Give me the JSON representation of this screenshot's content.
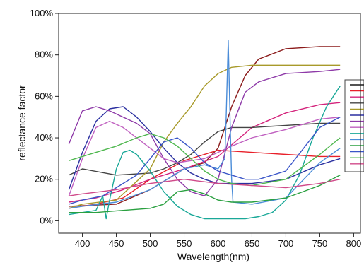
{
  "chart_data": {
    "type": "line",
    "title": "",
    "xlabel": "Wavelength(nm)",
    "ylabel": "reflectance factor",
    "xlim": [
      365,
      810
    ],
    "ylim": [
      -0.06,
      1.0
    ],
    "x_ticks": [
      400,
      450,
      500,
      550,
      600,
      650,
      700,
      750,
      800
    ],
    "x_tick_labels": [
      "400",
      "450",
      "500",
      "550",
      "600",
      "650",
      "700",
      "750",
      "800"
    ],
    "y_ticks": [
      0,
      0.2,
      0.4,
      0.6,
      0.8,
      1.0
    ],
    "y_tick_labels": [
      "0%",
      "20%",
      "40%",
      "60%",
      "80%",
      "100%"
    ],
    "grid": false,
    "legend_position": "right, partially cut off",
    "series": [
      {
        "color": "#8b1a1a",
        "x": [
          380,
          450,
          500,
          550,
          580,
          600,
          620,
          640,
          660,
          700,
          750,
          780
        ],
        "y": [
          0.07,
          0.08,
          0.15,
          0.25,
          0.28,
          0.35,
          0.55,
          0.7,
          0.78,
          0.83,
          0.84,
          0.84
        ]
      },
      {
        "color": "#e8202a",
        "x": [
          380,
          420,
          460,
          500,
          550,
          600,
          650,
          700,
          750,
          780
        ],
        "y": [
          0.06,
          0.08,
          0.11,
          0.2,
          0.29,
          0.34,
          0.33,
          0.32,
          0.31,
          0.31
        ]
      },
      {
        "color": "#d4247c",
        "x": [
          380,
          420,
          460,
          500,
          550,
          600,
          650,
          700,
          750,
          780
        ],
        "y": [
          0.09,
          0.11,
          0.15,
          0.2,
          0.25,
          0.31,
          0.45,
          0.52,
          0.56,
          0.57
        ]
      },
      {
        "color": "#444444",
        "x": [
          380,
          400,
          450,
          500,
          520,
          540,
          560,
          580,
          600,
          620,
          650,
          700,
          750,
          780
        ],
        "y": [
          0.22,
          0.25,
          0.22,
          0.23,
          0.25,
          0.28,
          0.32,
          0.38,
          0.43,
          0.45,
          0.45,
          0.46,
          0.47,
          0.47
        ]
      },
      {
        "color": "#a89a2a",
        "x": [
          380,
          400,
          450,
          500,
          520,
          540,
          560,
          580,
          600,
          620,
          650,
          700,
          750,
          780
        ],
        "y": [
          0.06,
          0.08,
          0.1,
          0.25,
          0.38,
          0.47,
          0.55,
          0.65,
          0.71,
          0.74,
          0.75,
          0.75,
          0.75,
          0.75
        ]
      },
      {
        "color": "#2a2fa0",
        "x": [
          380,
          400,
          420,
          440,
          460,
          480,
          500,
          520,
          540,
          560,
          580,
          600,
          620,
          650,
          700,
          750,
          780
        ],
        "y": [
          0.15,
          0.33,
          0.48,
          0.54,
          0.55,
          0.5,
          0.43,
          0.35,
          0.28,
          0.23,
          0.2,
          0.18,
          0.18,
          0.18,
          0.2,
          0.27,
          0.3
        ]
      },
      {
        "color": "#8e3aa8",
        "x": [
          380,
          400,
          420,
          440,
          460,
          480,
          500,
          520,
          540,
          560,
          580,
          600,
          620,
          640,
          660,
          700,
          750,
          780
        ],
        "y": [
          0.37,
          0.53,
          0.55,
          0.53,
          0.5,
          0.47,
          0.42,
          0.3,
          0.2,
          0.14,
          0.12,
          0.2,
          0.45,
          0.62,
          0.67,
          0.71,
          0.72,
          0.73
        ]
      },
      {
        "color": "#c060c0",
        "x": [
          380,
          400,
          420,
          440,
          460,
          480,
          500,
          520,
          540,
          560,
          580,
          600,
          620,
          650,
          700,
          750,
          780
        ],
        "y": [
          0.12,
          0.3,
          0.45,
          0.48,
          0.45,
          0.4,
          0.35,
          0.3,
          0.28,
          0.29,
          0.3,
          0.33,
          0.36,
          0.4,
          0.44,
          0.49,
          0.5
        ]
      },
      {
        "color": "#1aa898",
        "x": [
          380,
          420,
          430,
          435,
          440,
          450,
          460,
          470,
          480,
          500,
          520,
          540,
          560,
          580,
          600,
          620,
          640,
          660,
          680,
          700,
          720,
          740,
          760,
          780
        ],
        "y": [
          0.03,
          0.05,
          0.12,
          0.01,
          0.1,
          0.25,
          0.33,
          0.34,
          0.32,
          0.24,
          0.14,
          0.07,
          0.03,
          0.01,
          0.01,
          0.01,
          0.01,
          0.02,
          0.04,
          0.1,
          0.22,
          0.4,
          0.55,
          0.65
        ]
      },
      {
        "color": "#4a8cd8",
        "x": [
          380,
          400,
          450,
          500,
          550,
          580,
          600,
          610,
          612,
          615,
          618,
          620,
          622,
          650,
          700,
          750,
          780
        ],
        "y": [
          0.06,
          0.07,
          0.09,
          0.15,
          0.25,
          0.27,
          0.25,
          0.3,
          0.5,
          0.87,
          0.45,
          0.2,
          0.09,
          0.08,
          0.11,
          0.28,
          0.35
        ]
      },
      {
        "color": "#2aa040",
        "x": [
          380,
          420,
          460,
          500,
          520,
          540,
          560,
          580,
          600,
          620,
          650,
          700,
          750,
          780
        ],
        "y": [
          0.04,
          0.04,
          0.05,
          0.06,
          0.08,
          0.14,
          0.15,
          0.13,
          0.1,
          0.09,
          0.09,
          0.11,
          0.17,
          0.22
        ]
      },
      {
        "color": "#3a55c8",
        "x": [
          380,
          400,
          430,
          450,
          480,
          500,
          520,
          540,
          560,
          580,
          600,
          620,
          640,
          660,
          700,
          750,
          780
        ],
        "y": [
          0.08,
          0.1,
          0.12,
          0.16,
          0.22,
          0.3,
          0.38,
          0.4,
          0.35,
          0.28,
          0.24,
          0.22,
          0.2,
          0.2,
          0.24,
          0.45,
          0.5
        ]
      },
      {
        "color": "#50b850",
        "x": [
          380,
          400,
          420,
          450,
          480,
          500,
          520,
          540,
          560,
          580,
          600,
          620,
          650,
          700,
          750,
          780
        ],
        "y": [
          0.29,
          0.31,
          0.33,
          0.36,
          0.4,
          0.42,
          0.4,
          0.36,
          0.3,
          0.24,
          0.2,
          0.18,
          0.17,
          0.2,
          0.32,
          0.4
        ]
      },
      {
        "color": "#d04a8a",
        "x": [
          380,
          400,
          450,
          500,
          550,
          600,
          650,
          700,
          750,
          780
        ],
        "y": [
          0.12,
          0.13,
          0.15,
          0.18,
          0.2,
          0.18,
          0.17,
          0.16,
          0.18,
          0.2
        ]
      }
    ],
    "legend_swatches": [
      "#1a1a1a",
      "#e8202a",
      "#d4247c",
      "#444444",
      "#a89a2a",
      "#2a2fa0",
      "#8e3aa8",
      "#c060c0",
      "#1aa898",
      "#4a8cd8",
      "#2aa040",
      "#3a55c8",
      "#50b850",
      "#d04a8a"
    ]
  }
}
